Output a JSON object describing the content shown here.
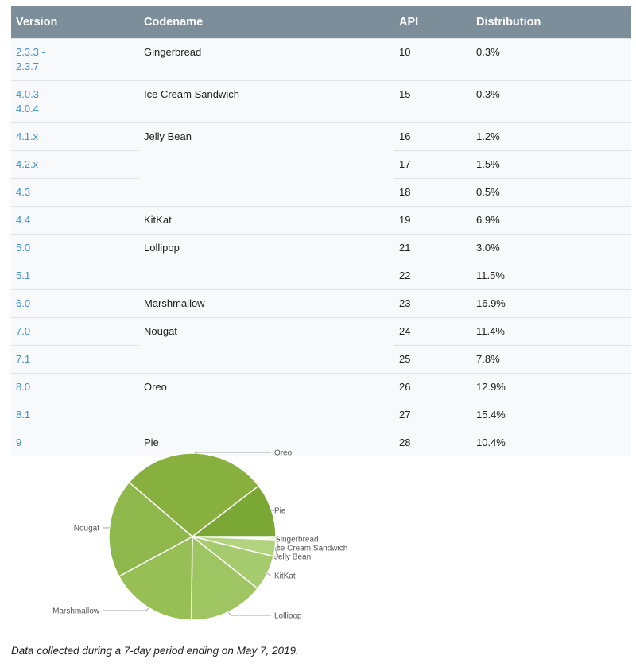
{
  "table": {
    "headers": [
      "Version",
      "Codename",
      "API",
      "Distribution"
    ],
    "rows": [
      {
        "version": "2.3.3 - 2.3.7",
        "codename": "Gingerbread",
        "span": 1,
        "api": "10",
        "dist": "0.3%",
        "tall": true
      },
      {
        "version": "4.0.3 - 4.0.4",
        "codename": "Ice Cream Sandwich",
        "span": 1,
        "api": "15",
        "dist": "0.3%",
        "tall": true
      },
      {
        "version": "4.1.x",
        "codename": "Jelly Bean",
        "span": 3,
        "api": "16",
        "dist": "1.2%"
      },
      {
        "version": "4.2.x",
        "api": "17",
        "dist": "1.5%"
      },
      {
        "version": "4.3",
        "api": "18",
        "dist": "0.5%"
      },
      {
        "version": "4.4",
        "codename": "KitKat",
        "span": 1,
        "api": "19",
        "dist": "6.9%"
      },
      {
        "version": "5.0",
        "codename": "Lollipop",
        "span": 2,
        "api": "21",
        "dist": "3.0%"
      },
      {
        "version": "5.1",
        "api": "22",
        "dist": "11.5%"
      },
      {
        "version": "6.0",
        "codename": "Marshmallow",
        "span": 1,
        "api": "23",
        "dist": "16.9%"
      },
      {
        "version": "7.0",
        "codename": "Nougat",
        "span": 2,
        "api": "24",
        "dist": "11.4%"
      },
      {
        "version": "7.1",
        "api": "25",
        "dist": "7.8%"
      },
      {
        "version": "8.0",
        "codename": "Oreo",
        "span": 2,
        "api": "26",
        "dist": "12.9%"
      },
      {
        "version": "8.1",
        "api": "27",
        "dist": "15.4%"
      },
      {
        "version": "9",
        "codename": "Pie",
        "span": 1,
        "api": "28",
        "dist": "10.4%"
      }
    ]
  },
  "chart_data": {
    "type": "pie",
    "labels": [
      "Gingerbread",
      "Ice Cream Sandwich",
      "Jelly Bean",
      "KitKat",
      "Lollipop",
      "Marshmallow",
      "Nougat",
      "Oreo",
      "Pie"
    ],
    "values": [
      0.3,
      0.3,
      3.2,
      6.9,
      14.5,
      16.9,
      19.2,
      28.3,
      10.4
    ],
    "colors": [
      "#d6e6b5",
      "#c4dd98",
      "#b3d47f",
      "#a6cb6e",
      "#9fc562",
      "#97bf55",
      "#8eb84c",
      "#88b03f",
      "#7ba834"
    ]
  },
  "footer": "Data collected during a 7-day period ending on May 7, 2019."
}
